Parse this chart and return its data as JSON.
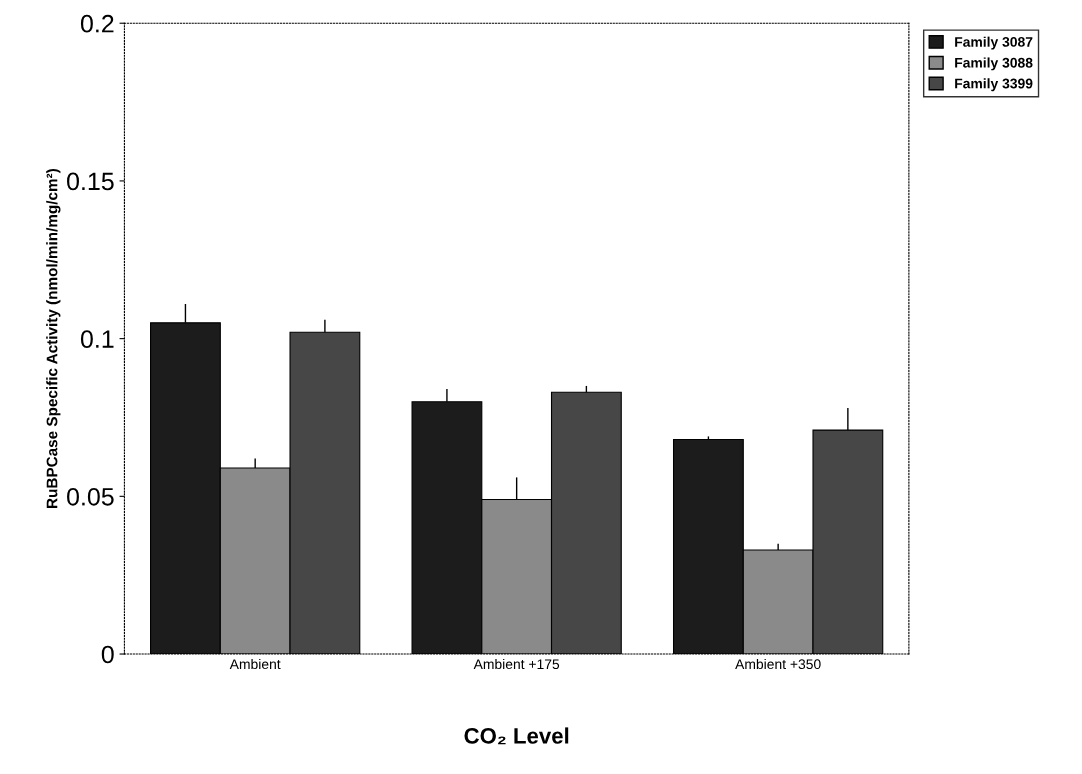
{
  "chart_data": {
    "type": "bar",
    "xlabel": "CO₂ Level",
    "ylabel": "RuBPCase Specific Activity (nmol/min/mg/cm²)",
    "categories": [
      "Ambient",
      "Ambient +175",
      "Ambient +350"
    ],
    "series": [
      {
        "name": "Family 3087",
        "color": "#1c1c1c",
        "values": [
          0.105,
          0.08,
          0.068
        ],
        "errors": [
          [
            0.105,
            0.111
          ],
          [
            0.08,
            0.084
          ],
          [
            0.068,
            0.069
          ]
        ]
      },
      {
        "name": "Family 3088",
        "color": "#8a8a8a",
        "values": [
          0.059,
          0.049,
          0.033
        ],
        "errors": [
          [
            0.059,
            0.062
          ],
          [
            0.049,
            0.056
          ],
          [
            0.033,
            0.035
          ]
        ]
      },
      {
        "name": "Family 3399",
        "color": "#474747",
        "values": [
          0.102,
          0.083,
          0.071
        ],
        "errors": [
          [
            0.102,
            0.106
          ],
          [
            0.083,
            0.085
          ],
          [
            0.071,
            0.078
          ]
        ]
      }
    ],
    "ylim": [
      0,
      0.2
    ],
    "yticks": [
      0,
      0.05,
      0.1,
      0.15,
      0.2
    ],
    "grid": false,
    "legend": "top right"
  }
}
